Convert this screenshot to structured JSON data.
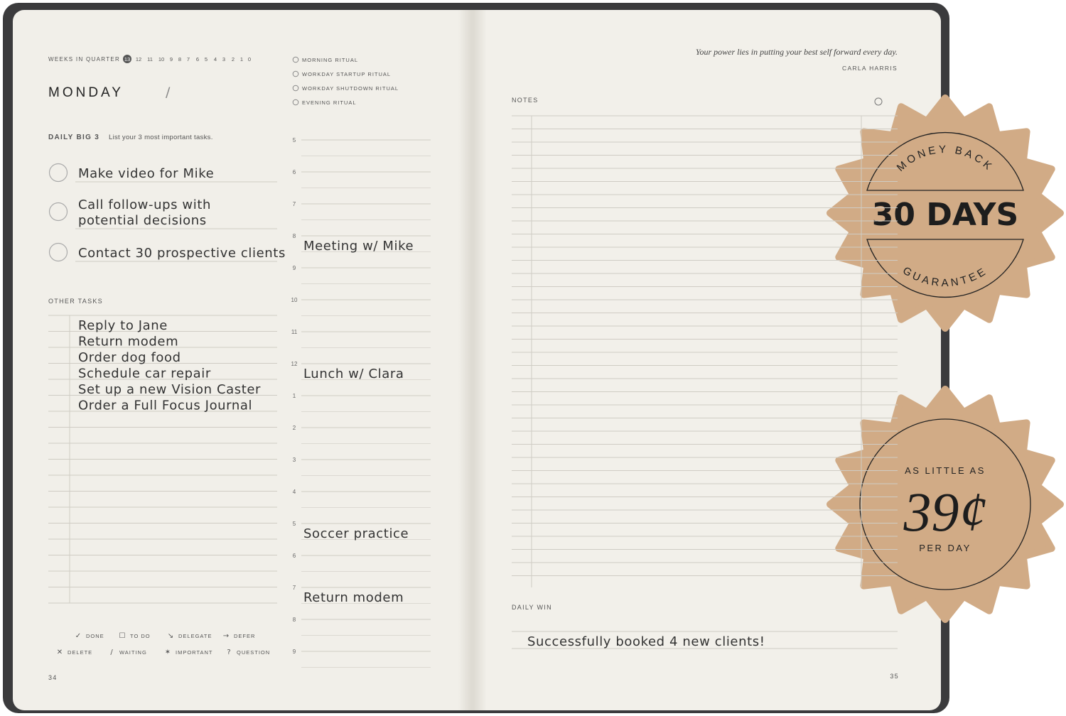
{
  "left_page": {
    "weeks_label": "WEEKS IN QUARTER",
    "weeks": [
      "13",
      "12",
      "11",
      "10",
      "9",
      "8",
      "7",
      "6",
      "5",
      "4",
      "3",
      "2",
      "1",
      "0"
    ],
    "day": "MONDAY",
    "date_slash": "/",
    "big3_title": "DAILY BIG 3",
    "big3_hint": "List your 3 most important tasks.",
    "big3": [
      [
        "Make video for Mike"
      ],
      [
        "Call follow-ups with",
        "potential decisions"
      ],
      [
        "Contact 30 prospective clients"
      ]
    ],
    "other_title": "OTHER TASKS",
    "other": [
      "Reply to Jane",
      "Return modem",
      "Order dog food",
      "Schedule car repair",
      "Set up a new Vision Caster",
      "Order a Full Focus Journal"
    ],
    "rituals": [
      "MORNING RITUAL",
      "WORKDAY STARTUP RITUAL",
      "WORKDAY SHUTDOWN RITUAL",
      "EVENING RITUAL"
    ],
    "schedule": [
      {
        "hour": "5"
      },
      {
        "hour": "6"
      },
      {
        "hour": "7"
      },
      {
        "hour": "8",
        "entry": "Meeting w/ Mike"
      },
      {
        "hour": "9"
      },
      {
        "hour": "10"
      },
      {
        "hour": "11"
      },
      {
        "hour": "12",
        "entry": "Lunch w/ Clara"
      },
      {
        "hour": "1"
      },
      {
        "hour": "2"
      },
      {
        "hour": "3"
      },
      {
        "hour": "4"
      },
      {
        "hour": "5",
        "entry": "Soccer practice"
      },
      {
        "hour": "6"
      },
      {
        "hour": "7",
        "entry": "Return modem"
      },
      {
        "hour": "8"
      },
      {
        "hour": "9"
      }
    ],
    "legend": [
      {
        "symbol": "✓",
        "label": "DONE"
      },
      {
        "symbol": "☐",
        "label": "TO DO"
      },
      {
        "symbol": "↘",
        "label": "DELEGATE"
      },
      {
        "symbol": "→",
        "label": "DEFER"
      },
      {
        "symbol": "✕",
        "label": "DELETE"
      },
      {
        "symbol": "/",
        "label": "WAITING"
      },
      {
        "symbol": "✶",
        "label": "IMPORTANT"
      },
      {
        "symbol": "?",
        "label": "QUESTION"
      }
    ],
    "page_number": "34"
  },
  "right_page": {
    "quote": "Your power lies in putting your best self forward every day.",
    "author": "CARLA HARRIS",
    "notes_title": "NOTES",
    "daily_win_title": "DAILY WIN",
    "daily_win": "Successfully booked 4 new clients!",
    "page_number": "35"
  },
  "badges": [
    {
      "top": "MONEY BACK",
      "main": "30 DAYS",
      "bottom": "GUARANTEE"
    },
    {
      "top": "AS LITTLE AS",
      "main": "39¢",
      "bottom": "PER DAY"
    }
  ]
}
